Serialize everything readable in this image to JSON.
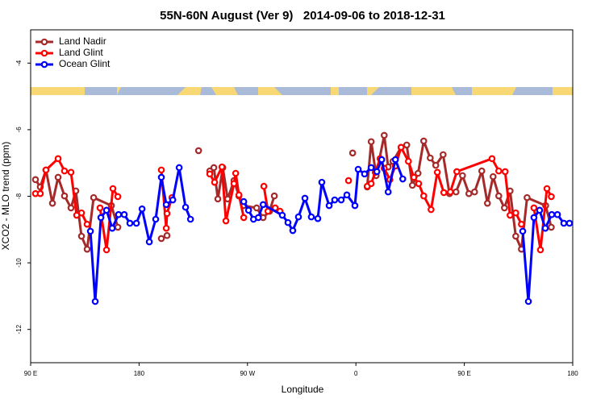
{
  "chart_data": {
    "type": "line",
    "title": "55N-60N August (Ver 9)   2014-09-06 to 2018-12-31",
    "xlabel": "Longitude",
    "ylabel": "XCO2 - MLO trend (ppm)",
    "xlim": [
      90,
      540
    ],
    "ylim": [
      -13,
      -3
    ],
    "xticks": [
      {
        "value": 90,
        "label": "90 E"
      },
      180,
      {
        "value": 270,
        "label": "90 W"
      },
      {
        "value": 360,
        "label": "0"
      },
      {
        "value": 450,
        "label": "90 E"
      },
      {
        "value": 540,
        "label": "180"
      }
    ],
    "yticks": [
      -4,
      -6,
      -8,
      -10,
      -12
    ],
    "legend": "top-left",
    "series": [
      {
        "name": "Land Nadir",
        "color": "#a52a2a",
        "x": [
          94.0,
          98.0,
          102.7,
          108.1,
          112.8,
          118.1,
          123.5,
          127.5,
          132.2,
          136.9,
          142.3,
          157.0,
          162.4,
          180,
          198.5,
          203.2,
          215,
          229.4,
          234,
          238.7,
          242.1,
          245.4,
          249.5,
          253.5,
          258.8,
          262.9,
          266.9,
          277.6,
          283.0,
          288.3,
          292.3,
          330,
          357.3,
          363,
          369.4,
          372.7,
          376.8,
          383.5,
          386.8,
          390.8,
          397.5,
          402.2,
          406.9,
          411.6,
          416.3,
          421.7,
          426.3,
          432.4,
          437.7,
          443.1,
          448.5,
          453.8,
          458.5,
          464.5,
          469.2,
          473.9,
          478.6,
          483.3,
          488.0,
          492.7,
          497.4,
          502.1,
          517.5,
          522.2
        ],
        "values": [
          -7.5,
          -7.72,
          -7.21,
          -8.21,
          -7.43,
          -7.99,
          -8.35,
          -7.84,
          -9.2,
          -9.59,
          -8.04,
          -8.28,
          -8.93,
          null,
          -9.27,
          -9.18,
          null,
          -6.63,
          null,
          -7.24,
          -7.14,
          -8.08,
          -7.14,
          -8.08,
          -7.53,
          -7.99,
          -8.28,
          -8.35,
          -8.64,
          -8.45,
          -7.99,
          null,
          -6.7,
          null,
          -7.72,
          -6.36,
          -7.38,
          -6.17,
          -7.12,
          -6.95,
          -6.53,
          -6.46,
          -7.67,
          -7.31,
          -6.34,
          -6.85,
          -7.07,
          -6.75,
          -7.92,
          -7.87,
          -7.38,
          -7.92,
          -7.87,
          -7.24,
          -8.21,
          -7.41,
          -7.99,
          -8.35,
          -7.84,
          -9.2,
          -9.59,
          -8.04,
          -8.28,
          -8.93
        ]
      },
      {
        "name": "Land Glint",
        "color": "#ff0000",
        "x": [
          94.0,
          98.0,
          102.7,
          112.8,
          118.1,
          123.5,
          128.2,
          132.2,
          136.9,
          142,
          147.6,
          153.0,
          158.3,
          162.4,
          180,
          198.5,
          202.6,
          203.2,
          207.3,
          220,
          238.7,
          242.7,
          248.8,
          252.1,
          258.8,
          260.2,
          262.9,
          266.9,
          275,
          283.6,
          287.0,
          293.0,
          297.0,
          320,
          353.9,
          362,
          369.4,
          372.7,
          376.1,
          380.1,
          383.5,
          388.2,
          392.8,
          397.5,
          403.6,
          408.1,
          412.1,
          416.3,
          422.4,
          427.6,
          433.0,
          438.4,
          443.8,
          473.0,
          478.6,
          483.9,
          488.0,
          492.7,
          497.4,
          502,
          507.8,
          513.2,
          518.6,
          522.2
        ],
        "values": [
          -7.92,
          -7.92,
          -7.21,
          -6.87,
          -7.24,
          -7.28,
          -8.57,
          -8.5,
          -8.84,
          null,
          -8.35,
          -9.61,
          -7.77,
          -8.01,
          null,
          -7.21,
          -8.96,
          -8.52,
          -8.04,
          null,
          -7.33,
          -7.58,
          -7.12,
          -8.74,
          -7.62,
          -7.31,
          -7.96,
          -8.64,
          null,
          -7.7,
          -8.45,
          -8.35,
          -8.45,
          null,
          -7.53,
          null,
          -7.7,
          -7.62,
          -7.28,
          -6.87,
          -7.16,
          -7.5,
          -7.09,
          -6.53,
          -6.95,
          -7.43,
          -7.62,
          -7.99,
          -8.4,
          -7.28,
          -7.89,
          -7.87,
          -7.26,
          -6.87,
          -7.24,
          -7.26,
          -8.57,
          -8.5,
          -8.84,
          null,
          -8.35,
          -9.61,
          -7.77,
          -8.01
        ]
      },
      {
        "name": "Ocean Glint",
        "color": "#0000ff",
        "x": [
          139.6,
          143.6,
          148.3,
          153.0,
          157.7,
          163.0,
          167.7,
          172.4,
          177.8,
          182.5,
          188.5,
          193.8,
          198.5,
          202.6,
          208.0,
          213.3,
          218.6,
          222.7,
          245,
          266.9,
          270.9,
          275.0,
          279.0,
          283.0,
          298.9,
          303.6,
          307.6,
          312.3,
          317.7,
          323.0,
          328.4,
          331.7,
          337.8,
          342.4,
          347.8,
          352.5,
          359.2,
          361.9,
          367.2,
          372.7,
          377.4,
          381.4,
          386.8,
          392.8,
          398.9,
          450,
          498.5,
          503.2,
          507.8,
          512.5,
          517.2,
          522.6,
          527.3,
          532.6,
          537.3
        ],
        "values": [
          -9.05,
          -11.16,
          -8.64,
          -8.42,
          -8.96,
          -8.55,
          -8.55,
          -8.81,
          -8.81,
          -8.38,
          -9.37,
          -8.69,
          -7.43,
          -8.25,
          -8.11,
          -7.14,
          -8.33,
          -8.69,
          null,
          -8.16,
          -8.42,
          -8.69,
          -8.64,
          -8.25,
          -8.57,
          -8.79,
          -9.03,
          -8.62,
          -8.06,
          -8.62,
          -8.67,
          -7.58,
          -8.28,
          -8.11,
          -8.11,
          -7.96,
          -8.28,
          -7.19,
          -7.33,
          -7.14,
          -7.26,
          -6.9,
          -7.87,
          -6.9,
          -7.48,
          null,
          -9.05,
          -11.16,
          -8.64,
          -8.42,
          -8.96,
          -8.55,
          -8.55,
          -8.81,
          -8.81
        ]
      }
    ]
  }
}
